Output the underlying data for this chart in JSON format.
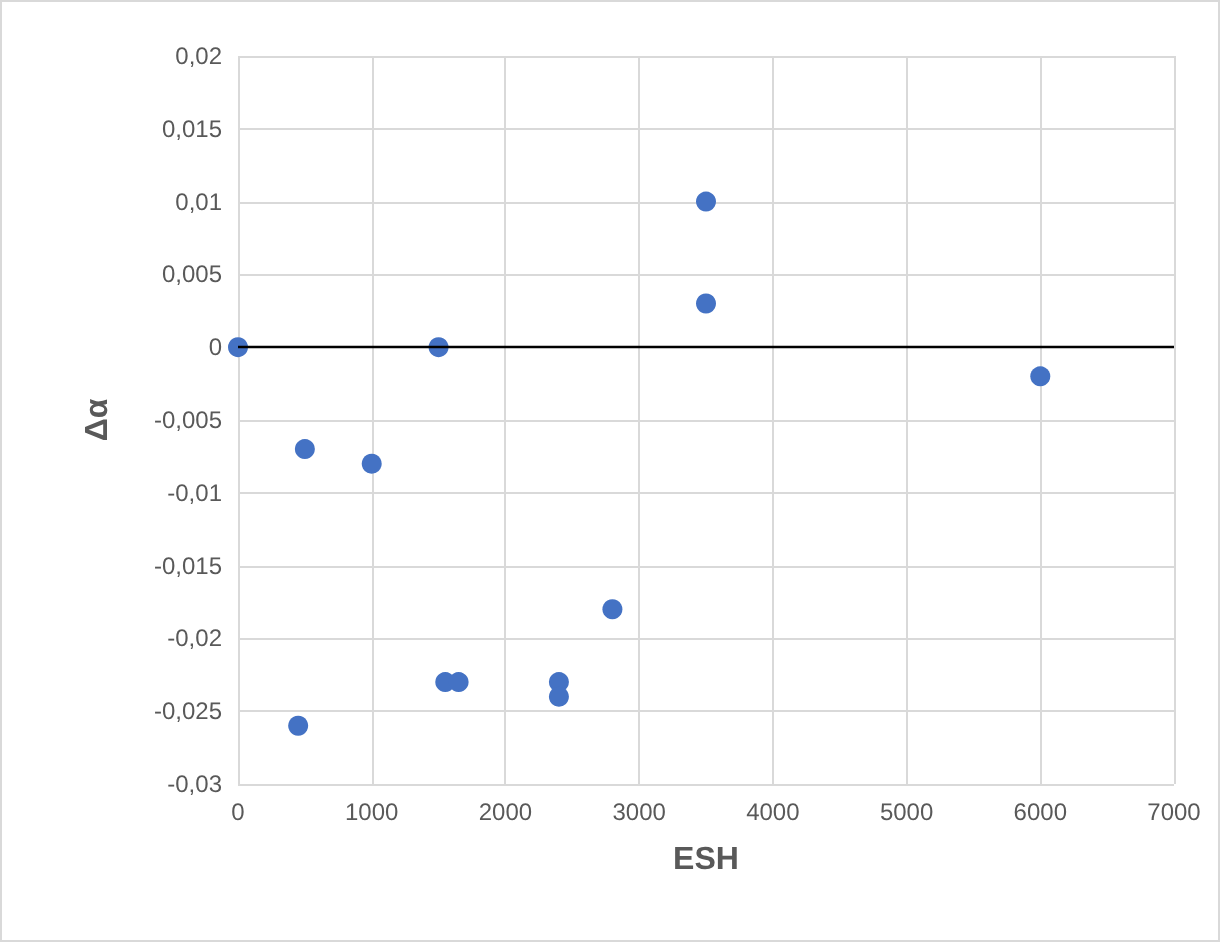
{
  "chart_data": {
    "type": "scatter",
    "xlabel": "ESH",
    "ylabel": "Δα",
    "x": [
      0,
      450,
      500,
      1000,
      1500,
      1550,
      1650,
      2400,
      2400,
      2800,
      3500,
      3500,
      6000
    ],
    "values": [
      0,
      -0.026,
      -0.007,
      -0.008,
      0,
      -0.023,
      -0.023,
      -0.023,
      -0.024,
      -0.018,
      0.01,
      0.003,
      -0.002
    ],
    "color": "#4472c4",
    "marker": "circle",
    "xlim": [
      0,
      7000
    ],
    "xticks": [
      0,
      1000,
      2000,
      3000,
      4000,
      5000,
      6000,
      7000
    ],
    "ylim": [
      -0.03,
      0.02
    ],
    "yticks": [
      {
        "value": -0.03,
        "label": "-0,03"
      },
      {
        "value": -0.025,
        "label": "-0,025"
      },
      {
        "value": -0.02,
        "label": "-0,02"
      },
      {
        "value": -0.015,
        "label": "-0,015"
      },
      {
        "value": -0.01,
        "label": "-0,01"
      },
      {
        "value": -0.005,
        "label": "-0,005"
      },
      {
        "value": 0,
        "label": "0"
      },
      {
        "value": 0.005,
        "label": "0,005"
      },
      {
        "value": 0.01,
        "label": "0,01"
      },
      {
        "value": 0.015,
        "label": "0,015"
      },
      {
        "value": 0.02,
        "label": "0,02"
      }
    ],
    "grid": true,
    "ref_lines": [
      {
        "axis": "y",
        "value": 0,
        "color": "#000000"
      }
    ]
  }
}
